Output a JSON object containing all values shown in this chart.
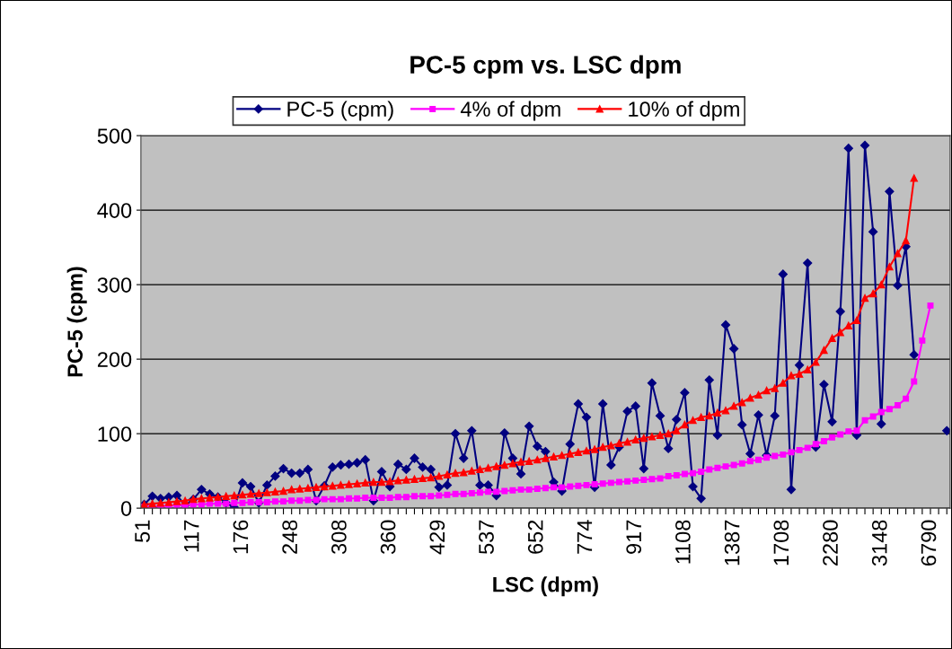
{
  "chart_data": {
    "type": "line",
    "title": "PC-5 cpm vs. LSC dpm",
    "xlabel": "LSC (dpm)",
    "ylabel": "PC-5 (cpm)",
    "categories": [
      "51",
      null,
      null,
      null,
      null,
      null,
      "117",
      null,
      null,
      null,
      null,
      null,
      "176",
      null,
      null,
      null,
      null,
      null,
      "248",
      null,
      null,
      null,
      null,
      null,
      "308",
      null,
      null,
      null,
      null,
      null,
      "360",
      null,
      null,
      null,
      null,
      null,
      "429",
      null,
      null,
      null,
      null,
      null,
      "537",
      null,
      null,
      null,
      null,
      null,
      "652",
      null,
      null,
      null,
      null,
      null,
      "774",
      null,
      null,
      null,
      null,
      null,
      "917",
      null,
      null,
      null,
      null,
      null,
      "1108",
      null,
      null,
      null,
      null,
      null,
      "1387",
      null,
      null,
      null,
      null,
      null,
      "1708",
      null,
      null,
      null,
      null,
      null,
      "2280",
      null,
      null,
      null,
      null,
      null,
      "3148",
      null,
      null,
      null,
      null,
      null,
      "6790",
      null,
      null
    ],
    "series": [
      {
        "name": "PC-5 (cpm)",
        "color": "#000080",
        "marker": "diamond",
        "values": [
          5,
          16,
          13,
          15,
          17,
          4,
          12,
          25,
          19,
          15,
          7,
          1,
          34,
          29,
          7,
          31,
          43,
          53,
          47,
          47,
          52,
          10,
          30,
          55,
          58,
          59,
          61,
          65,
          10,
          49,
          29,
          59,
          52,
          67,
          55,
          52,
          28,
          31,
          100,
          67,
          104,
          31,
          31,
          17,
          101,
          67,
          46,
          110,
          83,
          76,
          35,
          23,
          86,
          140,
          122,
          28,
          140,
          58,
          82,
          130,
          137,
          53,
          168,
          124,
          80,
          119,
          155,
          29,
          13,
          172,
          98,
          246,
          214,
          112,
          73,
          125,
          71,
          124,
          314,
          25,
          192,
          329,
          82,
          166,
          116,
          264,
          483,
          98,
          487,
          371,
          113,
          425,
          299,
          351,
          206,
          null,
          null,
          null,
          104
        ]
      },
      {
        "name": "4% of dpm",
        "color": "#ff00ff",
        "marker": "square",
        "values": [
          2,
          2,
          3,
          3,
          4,
          4,
          5,
          5,
          6,
          6,
          6,
          7,
          7,
          8,
          8,
          8,
          9,
          9,
          10,
          10,
          11,
          11,
          12,
          12,
          12,
          13,
          13,
          14,
          14,
          14,
          14,
          15,
          15,
          16,
          16,
          16,
          17,
          18,
          19,
          19,
          20,
          21,
          22,
          22,
          23,
          24,
          25,
          25,
          26,
          27,
          28,
          28,
          29,
          30,
          31,
          32,
          33,
          34,
          35,
          36,
          37,
          38,
          39,
          40,
          43,
          44,
          46,
          47,
          49,
          52,
          54,
          56,
          58,
          60,
          63,
          65,
          68,
          70,
          72,
          75,
          78,
          81,
          86,
          90,
          95,
          99,
          103,
          104,
          118,
          123,
          129,
          133,
          138,
          147,
          170,
          225,
          272,
          null,
          null
        ]
      },
      {
        "name": "10% of dpm",
        "color": "#ff0000",
        "marker": "triangle",
        "values": [
          5,
          6,
          7,
          8,
          9,
          10,
          12,
          13,
          14,
          15,
          16,
          17,
          18,
          19,
          20,
          21,
          22,
          23,
          25,
          26,
          27,
          28,
          29,
          30,
          31,
          32,
          33,
          34,
          35,
          35,
          36,
          37,
          38,
          39,
          40,
          41,
          43,
          45,
          47,
          48,
          50,
          52,
          54,
          56,
          58,
          60,
          62,
          63,
          65,
          67,
          69,
          71,
          73,
          75,
          77,
          79,
          82,
          84,
          87,
          89,
          92,
          94,
          96,
          98,
          100,
          104,
          112,
          118,
          122,
          124,
          128,
          131,
          137,
          142,
          148,
          152,
          158,
          161,
          168,
          178,
          180,
          186,
          196,
          212,
          228,
          236,
          245,
          252,
          282,
          288,
          300,
          324,
          342,
          359,
          443,
          null,
          null,
          null,
          null
        ]
      }
    ],
    "ylim": [
      0,
      500
    ],
    "yticks": [
      0,
      100,
      200,
      300,
      400,
      500
    ],
    "grid": "y",
    "legend": "top"
  }
}
